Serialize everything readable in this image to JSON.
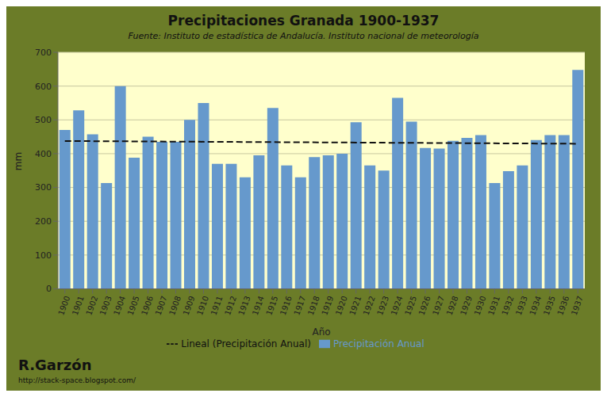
{
  "chart_data": {
    "type": "bar",
    "title": "Precipitaciones Granada 1900-1937",
    "subtitle": "Fuente: Instituto de estadística de Andalucía. Instituto nacional de meteorología",
    "x_label": "Año",
    "y_label": "mm",
    "categories": [
      "1900",
      "1901",
      "1902",
      "1903",
      "1904",
      "1905",
      "1906",
      "1907",
      "1908",
      "1909",
      "1910",
      "1911",
      "1912",
      "1913",
      "1914",
      "1915",
      "1916",
      "1917",
      "1918",
      "1919",
      "1920",
      "1921",
      "1922",
      "1923",
      "1924",
      "1925",
      "1926",
      "1927",
      "1928",
      "1929",
      "1930",
      "1931",
      "1932",
      "1933",
      "1934",
      "1935",
      "1936",
      "1937"
    ],
    "series": [
      {
        "name": "Precipitación Anual",
        "type": "bar",
        "color": "#6699CC",
        "values": [
          470,
          528,
          457,
          313,
          600,
          388,
          450,
          435,
          435,
          500,
          550,
          370,
          370,
          330,
          395,
          535,
          365,
          330,
          390,
          395,
          400,
          493,
          365,
          350,
          565,
          495,
          417,
          415,
          438,
          447,
          455,
          313,
          348,
          365,
          440,
          455,
          455,
          648
        ]
      },
      {
        "name": "Lineal (Precipitación Anual)",
        "type": "line",
        "color": "#111111",
        "line_style": "dashed",
        "values": [
          437.48,
          null,
          null,
          null,
          null,
          null,
          null,
          null,
          null,
          null,
          null,
          null,
          null,
          null,
          null,
          null,
          null,
          null,
          null,
          null,
          null,
          null,
          null,
          null,
          null,
          null,
          null,
          null,
          null,
          null,
          null,
          null,
          null,
          null,
          null,
          null,
          null,
          429.36
        ]
      }
    ],
    "ylim": [
      0,
      700
    ],
    "yticks": [
      0,
      100,
      200,
      300,
      400,
      500,
      600,
      700
    ],
    "grid": true,
    "legend": "bottom",
    "annotations": [
      "R.Garzón",
      "http://stack-space.blogspot.com/"
    ]
  }
}
